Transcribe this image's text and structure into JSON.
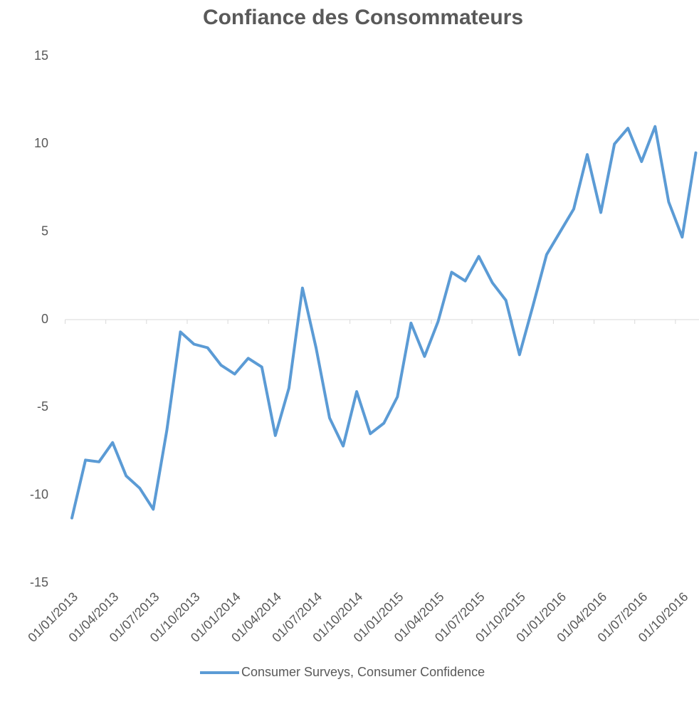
{
  "chart_data": {
    "type": "line",
    "title": "Confiance des Consommateurs",
    "categories": [
      "01/01/2013",
      null,
      null,
      "01/04/2013",
      null,
      null,
      "01/07/2013",
      null,
      null,
      "01/10/2013",
      null,
      null,
      "01/01/2014",
      null,
      null,
      "01/04/2014",
      null,
      null,
      "01/07/2014",
      null,
      null,
      "01/10/2014",
      null,
      null,
      "01/01/2015",
      null,
      null,
      "01/04/2015",
      null,
      null,
      "01/07/2015",
      null,
      null,
      "01/10/2015",
      null,
      null,
      "01/01/2016",
      null,
      null,
      "01/04/2016",
      null,
      null,
      "01/07/2016",
      null,
      null,
      "01/10/2016",
      null
    ],
    "series": [
      {
        "name": "Consumer Surveys, Consumer Confidence",
        "color": "#5b9bd5",
        "values": [
          -11.3,
          -8.0,
          -8.1,
          -7.0,
          -8.9,
          -9.6,
          -10.8,
          -6.3,
          -0.7,
          -1.4,
          -1.6,
          -2.6,
          -3.1,
          -2.2,
          -2.7,
          -6.6,
          -3.9,
          1.8,
          -1.6,
          -5.6,
          -7.2,
          -4.1,
          -6.5,
          -5.9,
          -4.4,
          -0.2,
          -2.1,
          -0.1,
          2.7,
          2.2,
          3.6,
          2.1,
          1.1,
          -2.0,
          0.8,
          3.7,
          5.0,
          6.3,
          9.4,
          6.1,
          10.0,
          10.9,
          9.0,
          11.0,
          6.7,
          4.7,
          9.5
        ]
      }
    ],
    "ylim": [
      -15,
      15
    ],
    "yticks": [
      -15,
      -10,
      -5,
      0,
      5,
      10,
      15
    ],
    "grid": false,
    "legend": "bottom"
  }
}
